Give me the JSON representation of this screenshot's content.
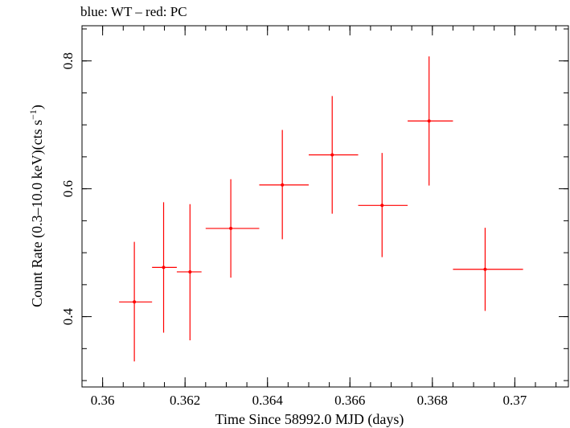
{
  "chart_data": {
    "type": "scatter",
    "title": "blue: WT – red: PC",
    "xlabel": "Time Since 58992.0 MJD (days)",
    "ylabel_main": "Count Rate (0.3–10.0 keV)(cts s",
    "ylabel_sup": "−1",
    "ylabel_close": ")",
    "xlim": [
      0.3595,
      0.3713
    ],
    "ylim": [
      0.29,
      0.855
    ],
    "x_ticks": [
      {
        "value": 0.36,
        "label": "0.36"
      },
      {
        "value": 0.362,
        "label": "0.362"
      },
      {
        "value": 0.364,
        "label": "0.364"
      },
      {
        "value": 0.366,
        "label": "0.366"
      },
      {
        "value": 0.368,
        "label": "0.368"
      },
      {
        "value": 0.37,
        "label": "0.37"
      }
    ],
    "x_minor_step": 0.0005,
    "y_ticks": [
      {
        "value": 0.4,
        "label": "0.4"
      },
      {
        "value": 0.6,
        "label": "0.6"
      },
      {
        "value": 0.8,
        "label": "0.8"
      }
    ],
    "y_minor_step": 0.05,
    "grid": false,
    "series": [
      {
        "color": "#ff0000",
        "points": [
          {
            "x": 0.36077,
            "xerr": [
              0.3604,
              0.3612
            ],
            "y": 0.423,
            "yerr": [
              0.33,
              0.517
            ]
          },
          {
            "x": 0.36148,
            "xerr": [
              0.3612,
              0.3618
            ],
            "y": 0.477,
            "yerr": [
              0.375,
              0.579
            ]
          },
          {
            "x": 0.36212,
            "xerr": [
              0.3618,
              0.3624
            ],
            "y": 0.47,
            "yerr": [
              0.363,
              0.576
            ]
          },
          {
            "x": 0.36311,
            "xerr": [
              0.3625,
              0.3638
            ],
            "y": 0.538,
            "yerr": [
              0.461,
              0.615
            ]
          },
          {
            "x": 0.36436,
            "xerr": [
              0.3638,
              0.365
            ],
            "y": 0.606,
            "yerr": [
              0.521,
              0.692
            ]
          },
          {
            "x": 0.36557,
            "xerr": [
              0.365,
              0.3662
            ],
            "y": 0.653,
            "yerr": [
              0.561,
              0.745
            ]
          },
          {
            "x": 0.36678,
            "xerr": [
              0.3662,
              0.3674
            ],
            "y": 0.574,
            "yerr": [
              0.493,
              0.656
            ]
          },
          {
            "x": 0.36792,
            "xerr": [
              0.3674,
              0.3685
            ],
            "y": 0.706,
            "yerr": [
              0.605,
              0.807
            ]
          },
          {
            "x": 0.36928,
            "xerr": [
              0.3685,
              0.3702
            ],
            "y": 0.474,
            "yerr": [
              0.409,
              0.539
            ]
          }
        ]
      }
    ]
  }
}
